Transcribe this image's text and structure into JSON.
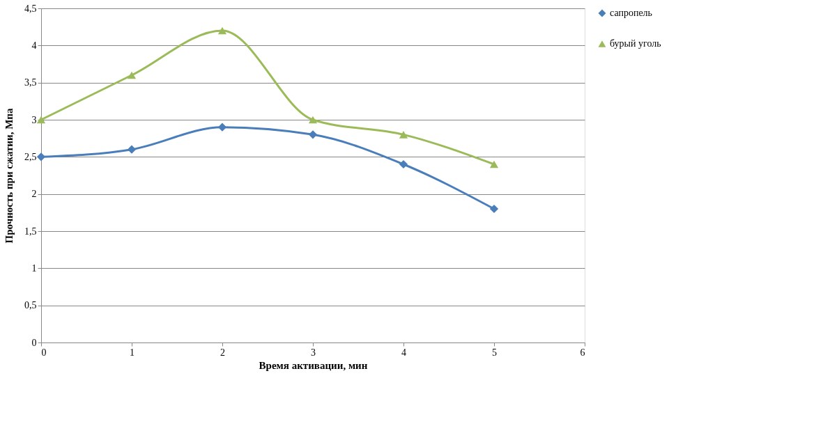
{
  "chart_data": {
    "type": "line",
    "xlabel": "Время активации, мин",
    "ylabel": "Прочность при сжатии, Мпа",
    "x": [
      0,
      1,
      2,
      3,
      4,
      5
    ],
    "series": [
      {
        "name": "сапропель",
        "color": "#4a7ebb",
        "marker": "diamond",
        "values": [
          2.5,
          2.6,
          2.9,
          2.8,
          2.4,
          1.8
        ]
      },
      {
        "name": "бурый уголь",
        "color": "#9bbb59",
        "marker": "triangle",
        "values": [
          3.0,
          3.6,
          4.2,
          3.0,
          2.8,
          2.4
        ]
      }
    ],
    "xlim": [
      0,
      6
    ],
    "xticks": [
      0,
      1,
      2,
      3,
      4,
      5,
      6
    ],
    "ylim": [
      0,
      4.5
    ],
    "yticks": [
      0,
      {
        "value": 0.5,
        "label": "0,5"
      },
      1,
      {
        "value": 1.5,
        "label": "1,5"
      },
      2,
      {
        "value": 2.5,
        "label": "2,5"
      },
      3,
      {
        "value": 3.5,
        "label": "3,5"
      },
      4,
      {
        "value": 4.5,
        "label": "4,5"
      }
    ],
    "grid": "y",
    "legend": "right",
    "line_style": "solid"
  }
}
